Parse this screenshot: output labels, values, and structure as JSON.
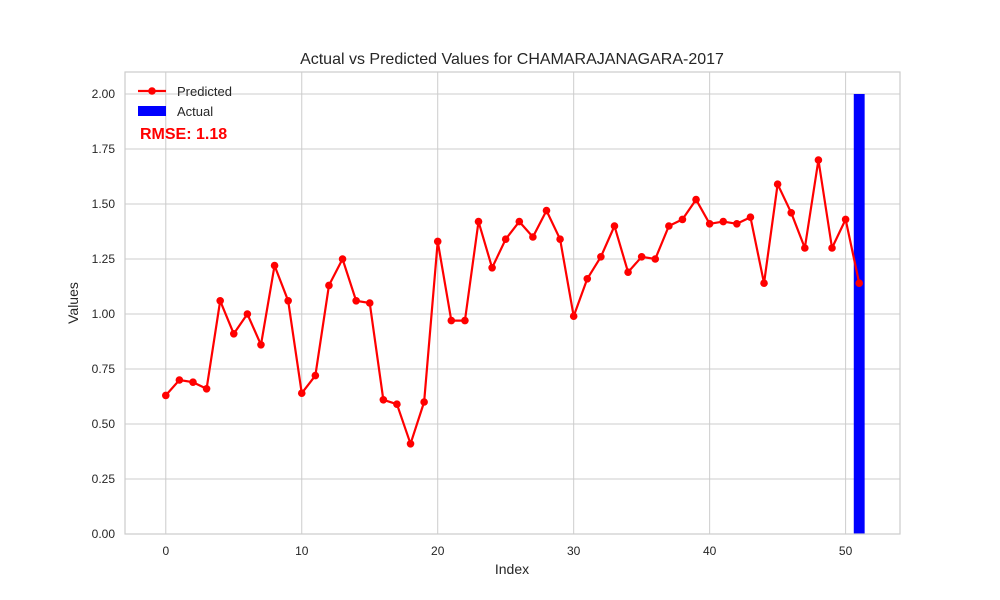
{
  "chart_data": {
    "type": "line",
    "title": "Actual vs Predicted Values for CHAMARAJANAGARA-2017",
    "xlabel": "Index",
    "ylabel": "Values",
    "xlim": [
      -3,
      54
    ],
    "ylim": [
      0,
      2.1
    ],
    "x_ticks": [
      0,
      10,
      20,
      30,
      40,
      50
    ],
    "y_ticks": [
      0.0,
      0.25,
      0.5,
      0.75,
      1.0,
      1.25,
      1.5,
      1.75,
      2.0
    ],
    "x_tick_labels": [
      "0",
      "10",
      "20",
      "30",
      "40",
      "50"
    ],
    "y_tick_labels": [
      "0.00",
      "0.25",
      "0.50",
      "0.75",
      "1.00",
      "1.25",
      "1.50",
      "1.75",
      "2.00"
    ],
    "grid": true,
    "legend_position": "top-left",
    "series": [
      {
        "name": "Predicted",
        "kind": "line",
        "color": "#ff0000",
        "marker": "circle",
        "x": [
          0,
          1,
          2,
          3,
          4,
          5,
          6,
          7,
          8,
          9,
          10,
          11,
          12,
          13,
          14,
          15,
          16,
          17,
          18,
          19,
          20,
          21,
          22,
          23,
          24,
          25,
          26,
          27,
          28,
          29,
          30,
          31,
          32,
          33,
          34,
          35,
          36,
          37,
          38,
          39,
          40,
          41,
          42,
          43,
          44,
          45,
          46,
          47,
          48,
          49,
          50,
          51
        ],
        "values": [
          0.63,
          0.7,
          0.69,
          0.66,
          1.06,
          0.91,
          1.0,
          0.86,
          1.22,
          1.06,
          0.64,
          0.72,
          1.13,
          1.25,
          1.06,
          1.05,
          0.61,
          0.59,
          0.41,
          0.6,
          1.33,
          0.97,
          0.97,
          1.42,
          1.21,
          1.34,
          1.42,
          1.35,
          1.47,
          1.34,
          0.99,
          1.16,
          1.26,
          1.4,
          1.19,
          1.26,
          1.25,
          1.4,
          1.43,
          1.52,
          1.41,
          1.42,
          1.41,
          1.44,
          1.14,
          1.59,
          1.46,
          1.3,
          1.7,
          1.3,
          1.43,
          1.14
        ]
      },
      {
        "name": "Actual",
        "kind": "bar",
        "color": "#0000ff",
        "x": [
          51
        ],
        "values": [
          2.0
        ]
      }
    ],
    "annotations": [
      {
        "text": "RMSE: 1.18",
        "color": "#ff0000"
      }
    ]
  }
}
